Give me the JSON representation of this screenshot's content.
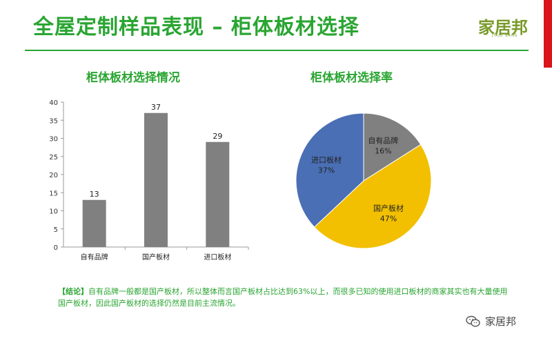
{
  "header": {
    "title": "全屋定制样品表现 – 柜体板材选择",
    "logo_text": "家居邦",
    "logo_sub": "JIAJU BANG"
  },
  "chart_data": [
    {
      "type": "bar",
      "title": "柜体板材选择情况",
      "categories": [
        "自有品牌",
        "国产板材",
        "进口板材"
      ],
      "values": [
        13,
        37,
        29
      ],
      "ylim": [
        0,
        40
      ],
      "yticks": [
        0,
        5,
        10,
        15,
        20,
        25,
        30,
        35,
        40
      ],
      "data_labels": [
        "13",
        "37",
        "29"
      ],
      "color": "#808080",
      "grid": false
    },
    {
      "type": "pie",
      "title": "柜体板材选择率",
      "slices": [
        {
          "label": "自有品牌",
          "pct_label": "16%",
          "value": 16,
          "color": "#808080"
        },
        {
          "label": "国产板材",
          "pct_label": "47%",
          "value": 47,
          "color": "#f2c000"
        },
        {
          "label": "进口板材",
          "pct_label": "37%",
          "value": 37,
          "color": "#4a6fb5"
        }
      ]
    }
  ],
  "conclusion": {
    "tag": "【结论】",
    "text": "自有品牌一般都是国产板材，所以整体而言国产板材占比达到63%以上，而很多已知的使用进口板材的商家其实也有大量使用国产板材，因此国产板材的选择仍然是目前主流情况。"
  },
  "watermark": {
    "text": "家居邦",
    "icon": "wechat-icon"
  }
}
